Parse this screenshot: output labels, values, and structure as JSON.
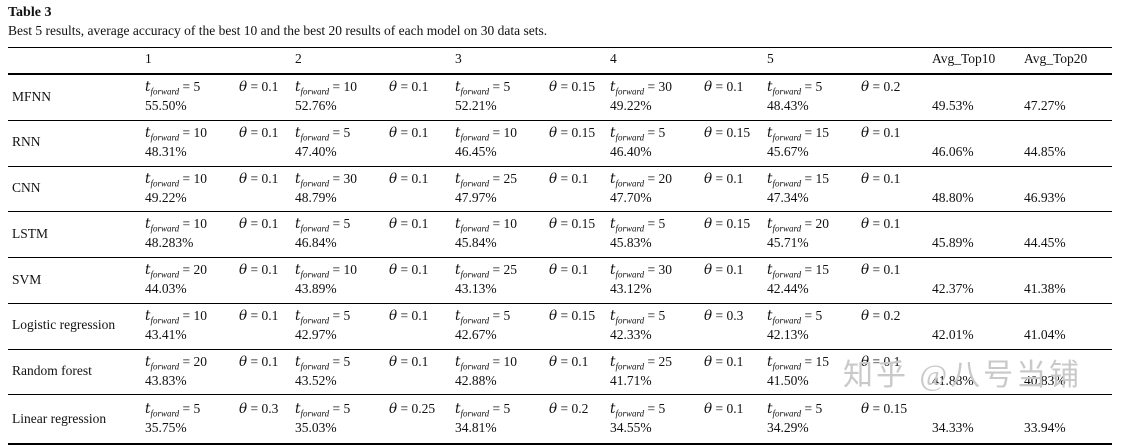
{
  "table": {
    "label": "Table 3",
    "caption": "Best 5 results, average accuracy of the best 10 and the best 20 results of each model on 30 data sets.",
    "columns": [
      "1",
      "2",
      "3",
      "4",
      "5",
      "Avg_Top10",
      "Avg_Top20"
    ],
    "param_notation": {
      "t_symbol": "t",
      "t_subscript": "forward",
      "theta_symbol": "θ"
    },
    "rows": [
      {
        "model": "MFNN",
        "cells": [
          {
            "t_forward": "5",
            "theta": "0.1",
            "accuracy": "55.50%"
          },
          {
            "t_forward": "10",
            "theta": "0.1",
            "accuracy": "52.76%"
          },
          {
            "t_forward": "5",
            "theta": "0.15",
            "accuracy": "52.21%"
          },
          {
            "t_forward": "30",
            "theta": "0.1",
            "accuracy": "49.22%"
          },
          {
            "t_forward": "5",
            "theta": "0.2",
            "accuracy": "48.43%"
          }
        ],
        "avg_top10": "49.53%",
        "avg_top20": "47.27%"
      },
      {
        "model": "RNN",
        "cells": [
          {
            "t_forward": "10",
            "theta": "0.1",
            "accuracy": "48.31%"
          },
          {
            "t_forward": "5",
            "theta": "0.1",
            "accuracy": "47.40%"
          },
          {
            "t_forward": "10",
            "theta": "0.15",
            "accuracy": "46.45%"
          },
          {
            "t_forward": "5",
            "theta": "0.15",
            "accuracy": "46.40%"
          },
          {
            "t_forward": "15",
            "theta": "0.1",
            "accuracy": "45.67%"
          }
        ],
        "avg_top10": "46.06%",
        "avg_top20": "44.85%"
      },
      {
        "model": "CNN",
        "cells": [
          {
            "t_forward": "10",
            "theta": "0.1",
            "accuracy": "49.22%"
          },
          {
            "t_forward": "30",
            "theta": "0.1",
            "accuracy": "48.79%"
          },
          {
            "t_forward": "25",
            "theta": "0.1",
            "accuracy": "47.97%"
          },
          {
            "t_forward": "20",
            "theta": "0.1",
            "accuracy": "47.70%"
          },
          {
            "t_forward": "15",
            "theta": "0.1",
            "accuracy": "47.34%"
          }
        ],
        "avg_top10": "48.80%",
        "avg_top20": "46.93%"
      },
      {
        "model": "LSTM",
        "cells": [
          {
            "t_forward": "10",
            "theta": "0.1",
            "accuracy": "48.283%"
          },
          {
            "t_forward": "5",
            "theta": "0.1",
            "accuracy": "46.84%"
          },
          {
            "t_forward": "10",
            "theta": "0.15",
            "accuracy": "45.84%"
          },
          {
            "t_forward": "5",
            "theta": "0.15",
            "accuracy": "45.83%"
          },
          {
            "t_forward": "20",
            "theta": "0.1",
            "accuracy": "45.71%"
          }
        ],
        "avg_top10": "45.89%",
        "avg_top20": "44.45%"
      },
      {
        "model": "SVM",
        "cells": [
          {
            "t_forward": "20",
            "theta": "0.1",
            "accuracy": "44.03%"
          },
          {
            "t_forward": "10",
            "theta": "0.1",
            "accuracy": "43.89%"
          },
          {
            "t_forward": "25",
            "theta": "0.1",
            "accuracy": "43.13%"
          },
          {
            "t_forward": "30",
            "theta": "0.1",
            "accuracy": "43.12%"
          },
          {
            "t_forward": "15",
            "theta": "0.1",
            "accuracy": "42.44%"
          }
        ],
        "avg_top10": "42.37%",
        "avg_top20": "41.38%"
      },
      {
        "model": "Logistic regression",
        "cells": [
          {
            "t_forward": "10",
            "theta": "0.1",
            "accuracy": "43.41%"
          },
          {
            "t_forward": "5",
            "theta": "0.1",
            "accuracy": "42.97%"
          },
          {
            "t_forward": "5",
            "theta": "0.15",
            "accuracy": "42.67%"
          },
          {
            "t_forward": "5",
            "theta": "0.3",
            "accuracy": "42.33%"
          },
          {
            "t_forward": "5",
            "theta": "0.2",
            "accuracy": "42.13%"
          }
        ],
        "avg_top10": "42.01%",
        "avg_top20": "41.04%"
      },
      {
        "model": "Random forest",
        "cells": [
          {
            "t_forward": "20",
            "theta": "0.1",
            "accuracy": "43.83%"
          },
          {
            "t_forward": "5",
            "theta": "0.1",
            "accuracy": "43.52%"
          },
          {
            "t_forward": "10",
            "theta": "0.1",
            "accuracy": "42.88%"
          },
          {
            "t_forward": "25",
            "theta": "0.1",
            "accuracy": "41.71%"
          },
          {
            "t_forward": "15",
            "theta": "0.1",
            "accuracy": "41.50%"
          }
        ],
        "avg_top10": "41.88%",
        "avg_top20": "40.83%"
      },
      {
        "model": "Linear regression",
        "cells": [
          {
            "t_forward": "5",
            "theta": "0.3",
            "accuracy": "35.75%"
          },
          {
            "t_forward": "5",
            "theta": "0.25",
            "accuracy": "35.03%"
          },
          {
            "t_forward": "5",
            "theta": "0.2",
            "accuracy": "34.81%"
          },
          {
            "t_forward": "5",
            "theta": "0.1",
            "accuracy": "34.55%"
          },
          {
            "t_forward": "5",
            "theta": "0.15",
            "accuracy": "34.29%"
          }
        ],
        "avg_top10": "34.33%",
        "avg_top20": "33.94%"
      }
    ]
  },
  "watermark": {
    "text": "知乎 @八号当铺",
    "color": "#c9c9c9"
  }
}
